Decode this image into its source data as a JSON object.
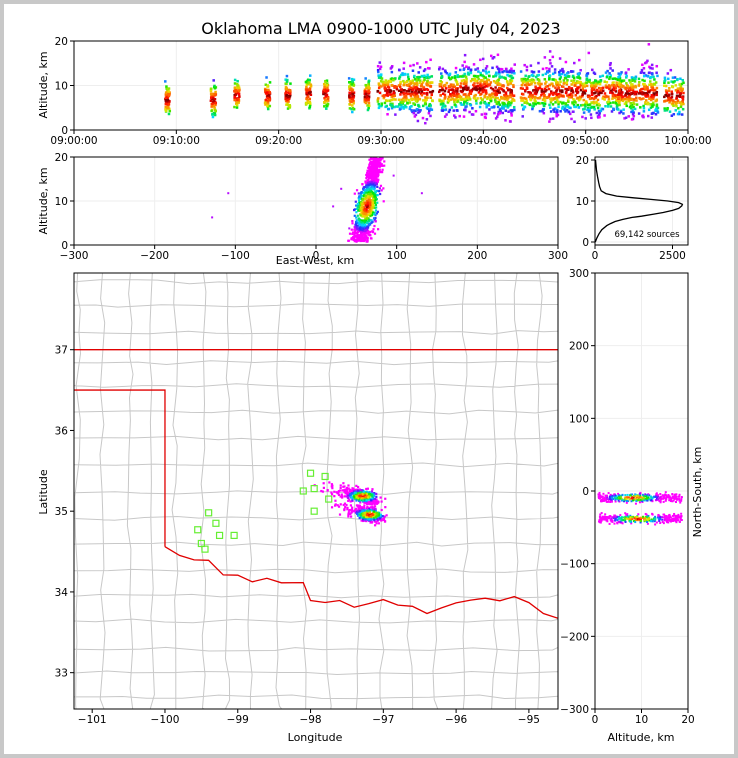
{
  "chart_data": [
    {
      "id": "time-height",
      "type": "scatter",
      "title": "Oklahoma LMA 0900-1000 UTC July 04, 2023",
      "xlabel": "",
      "ylabel": "Altitude, km",
      "x_unit": "minutes after 09:00 UTC",
      "xlim": [
        0,
        60
      ],
      "ylim": [
        0,
        20
      ],
      "x_ticks": [
        0,
        10,
        20,
        30,
        40,
        50,
        60
      ],
      "x_tick_labels": [
        "09:00:00",
        "09:10:00",
        "09:20:00",
        "09:30:00",
        "09:40:00",
        "09:50:00",
        "10:00:00"
      ],
      "y_ticks": [
        0,
        10,
        20
      ],
      "source_columns": [
        {
          "t": 9.0,
          "zmin": 3.5,
          "zmax": 13.5,
          "zpeak": 7
        },
        {
          "t": 13.5,
          "zmin": 3,
          "zmax": 12,
          "zpeak": 7
        },
        {
          "t": 15.8,
          "zmin": 5,
          "zmax": 14,
          "zpeak": 8
        },
        {
          "t": 18.8,
          "zmin": 4.5,
          "zmax": 13,
          "zpeak": 8
        },
        {
          "t": 20.8,
          "zmin": 4,
          "zmax": 14,
          "zpeak": 8
        },
        {
          "t": 22.8,
          "zmin": 5,
          "zmax": 14,
          "zpeak": 8.5
        },
        {
          "t": 24.5,
          "zmin": 5,
          "zmax": 15,
          "zpeak": 8.5
        },
        {
          "t": 27,
          "zmin": 4,
          "zmax": 15,
          "zpeak": 8
        },
        {
          "t": 28.5,
          "zmin": 4.5,
          "zmax": 14,
          "zpeak": 8
        },
        {
          "t": 30.5,
          "zmin": 2.5,
          "zmax": 17,
          "zpeak": 9
        },
        {
          "t": 32.5,
          "zmin": 3,
          "zmax": 17,
          "zpeak": 9
        },
        {
          "t": 34,
          "zmin": 1.5,
          "zmax": 17,
          "zpeak": 9
        },
        {
          "t": 36.5,
          "zmin": 2,
          "zmax": 18,
          "zpeak": 9
        },
        {
          "t": 38.5,
          "zmin": 3,
          "zmax": 18,
          "zpeak": 9.5
        },
        {
          "t": 40.5,
          "zmin": 2.5,
          "zmax": 19,
          "zpeak": 9.5
        },
        {
          "t": 42,
          "zmin": 2,
          "zmax": 19.5,
          "zpeak": 9
        },
        {
          "t": 44.5,
          "zmin": 3,
          "zmax": 17,
          "zpeak": 9
        },
        {
          "t": 46.5,
          "zmin": 2,
          "zmax": 19,
          "zpeak": 9
        },
        {
          "t": 48.5,
          "zmin": 2,
          "zmax": 18,
          "zpeak": 9
        },
        {
          "t": 50.5,
          "zmin": 2.5,
          "zmax": 18,
          "zpeak": 8.5
        },
        {
          "t": 52.5,
          "zmin": 3,
          "zmax": 16,
          "zpeak": 9
        },
        {
          "t": 54,
          "zmin": 2.5,
          "zmax": 18,
          "zpeak": 8.5
        },
        {
          "t": 56,
          "zmin": 3,
          "zmax": 20,
          "zpeak": 8.5
        },
        {
          "t": 58.5,
          "zmin": 3,
          "zmax": 15,
          "zpeak": 8
        }
      ]
    },
    {
      "id": "ew-height",
      "type": "heatmap",
      "xlabel": "East-West, km",
      "ylabel": "Altitude, km",
      "xlim": [
        -300,
        300
      ],
      "ylim": [
        0,
        20
      ],
      "x_ticks": [
        -300,
        -200,
        -100,
        0,
        100,
        200,
        300
      ],
      "y_ticks": [
        0,
        10,
        20
      ],
      "core": {
        "x_center": 62,
        "z_center": 9,
        "x_halfwidth": 25,
        "z_min": 1,
        "z_max": 20
      }
    },
    {
      "id": "altitude-histogram",
      "type": "line",
      "xlabel": "",
      "ylabel": "",
      "xlim": [
        0,
        3000
      ],
      "ylim": [
        0,
        20
      ],
      "x_ticks": [
        0,
        2500
      ],
      "y_ticks": [
        0,
        10,
        20
      ],
      "annotation": "69,142 sources",
      "points": [
        [
          10,
          0
        ],
        [
          60,
          1
        ],
        [
          130,
          2
        ],
        [
          220,
          3
        ],
        [
          380,
          4
        ],
        [
          500,
          4.5
        ],
        [
          650,
          5
        ],
        [
          900,
          5.5
        ],
        [
          1200,
          6
        ],
        [
          1500,
          6.3
        ],
        [
          1900,
          6.8
        ],
        [
          2200,
          7.2
        ],
        [
          2500,
          7.7
        ],
        [
          2700,
          8.2
        ],
        [
          2800,
          8.8
        ],
        [
          2820,
          9.2
        ],
        [
          2700,
          9.6
        ],
        [
          2350,
          10
        ],
        [
          1800,
          10.4
        ],
        [
          1200,
          10.8
        ],
        [
          700,
          11.2
        ],
        [
          350,
          11.8
        ],
        [
          200,
          12.5
        ],
        [
          150,
          13.5
        ],
        [
          120,
          14.5
        ],
        [
          80,
          16
        ],
        [
          50,
          17.5
        ],
        [
          30,
          19
        ],
        [
          15,
          20
        ]
      ]
    },
    {
      "id": "plan-view-map",
      "type": "heatmap",
      "xlabel": "Longitude",
      "ylabel": "Latitude",
      "xlim": [
        -101.25,
        -94.6
      ],
      "ylim": [
        32.55,
        37.95
      ],
      "x_ticks": [
        -101,
        -100,
        -99,
        -98,
        -97,
        -96,
        -95
      ],
      "y_ticks": [
        33,
        34,
        35,
        36,
        37
      ],
      "stations": [
        [
          -98.0,
          35.47
        ],
        [
          -98.1,
          35.25
        ],
        [
          -97.95,
          35.28
        ],
        [
          -97.8,
          35.43
        ],
        [
          -97.95,
          35.0
        ],
        [
          -97.75,
          35.15
        ],
        [
          -99.4,
          34.98
        ],
        [
          -99.3,
          34.85
        ],
        [
          -99.55,
          34.77
        ],
        [
          -99.25,
          34.7
        ],
        [
          -99.05,
          34.7
        ],
        [
          -99.5,
          34.6
        ],
        [
          -99.45,
          34.53
        ]
      ],
      "storm_cores": [
        {
          "lon": -97.3,
          "lat": 35.2
        },
        {
          "lon": -97.2,
          "lat": 34.97
        }
      ]
    },
    {
      "id": "ns-height",
      "type": "heatmap",
      "xlabel": "Altitude, km",
      "ylabel": "North-South, km",
      "xlim": [
        0,
        20
      ],
      "ylim": [
        -300,
        300
      ],
      "x_ticks": [
        0,
        10,
        20
      ],
      "y_ticks": [
        -300,
        -200,
        -100,
        0,
        100,
        200,
        300
      ],
      "cores": [
        {
          "ns": -8,
          "z": 8
        },
        {
          "ns": -37,
          "z": 9
        }
      ]
    }
  ],
  "colors": {
    "frame_bg": "#c8c8c8",
    "state_border": "#e00000",
    "county_lines": "#c8c8c8",
    "station_marker": "#66ee33",
    "grid": "#eeeeee"
  }
}
